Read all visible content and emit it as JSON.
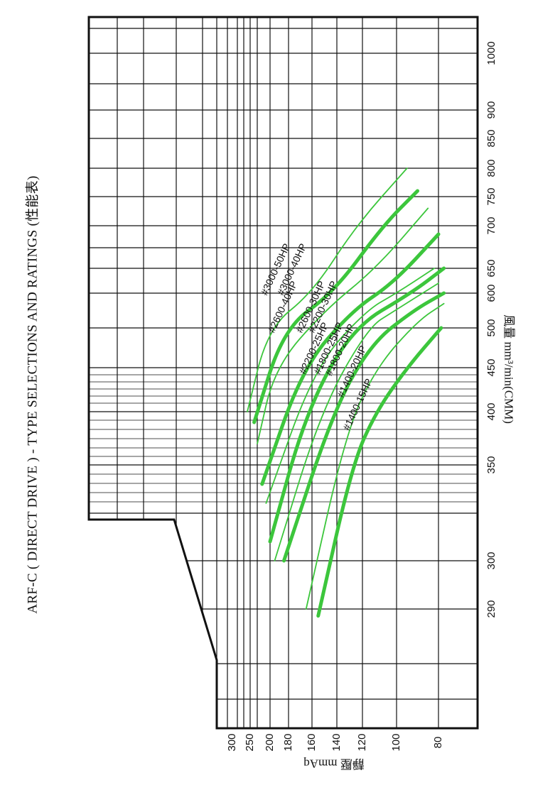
{
  "chart_data": {
    "type": "line",
    "title": "ARF-C ( DIRECT DRIVE ) - TYPE SELECTIONS AND RATINGS (性能表)",
    "xlabel": "風量 mm³/min(CMM)",
    "ylabel": "靜壓 mmAq",
    "x_ticks": [
      290,
      300,
      350,
      400,
      450,
      500,
      600,
      650,
      700,
      750,
      800,
      850,
      900,
      1000
    ],
    "y_ticks": [
      80,
      100,
      120,
      140,
      160,
      180,
      200,
      250,
      300
    ],
    "xlim": [
      250,
      1040
    ],
    "ylim": [
      60,
      320
    ],
    "grid": true,
    "colors": {
      "curve": "#3cc63c",
      "grid": "#111111",
      "text": "#111111"
    },
    "series": [
      {
        "name": "#3000-50HP",
        "weight": "thin",
        "points": [
          [
            400,
            258
          ],
          [
            500,
            205
          ],
          [
            600,
            160
          ],
          [
            700,
            125
          ],
          [
            800,
            95
          ]
        ]
      },
      {
        "name": "#3000-40HP",
        "weight": "bold",
        "points": [
          [
            390,
            240
          ],
          [
            500,
            185
          ],
          [
            600,
            143
          ],
          [
            700,
            108
          ],
          [
            760,
            90
          ]
        ]
      },
      {
        "name": "#2600-40HP",
        "weight": "thin",
        "points": [
          [
            370,
            232
          ],
          [
            450,
            195
          ],
          [
            550,
            150
          ],
          [
            650,
            112
          ],
          [
            730,
            85
          ]
        ]
      },
      {
        "name": "#2600-30HP",
        "weight": "bold",
        "points": [
          [
            340,
            220
          ],
          [
            450,
            168
          ],
          [
            550,
            128
          ],
          [
            620,
            102
          ],
          [
            690,
            80
          ]
        ]
      },
      {
        "name": "#2200-30HP",
        "weight": "thin",
        "points": [
          [
            330,
            210
          ],
          [
            450,
            158
          ],
          [
            550,
            118
          ],
          [
            600,
            100
          ],
          [
            650,
            82
          ]
        ]
      },
      {
        "name": "#2200-25HP",
        "weight": "bold",
        "points": [
          [
            310,
            200
          ],
          [
            400,
            165
          ],
          [
            500,
            128
          ],
          [
            600,
            93
          ],
          [
            650,
            76
          ]
        ]
      },
      {
        "name": "#1800-25HP",
        "weight": "thin",
        "points": [
          [
            300,
            195
          ],
          [
            400,
            153
          ],
          [
            500,
            117
          ],
          [
            550,
            101
          ],
          [
            620,
            80
          ]
        ]
      },
      {
        "name": "#1800-20HP",
        "weight": "bold",
        "points": [
          [
            300,
            185
          ],
          [
            400,
            143
          ],
          [
            480,
            115
          ],
          [
            550,
            92
          ],
          [
            600,
            76
          ]
        ]
      },
      {
        "name": "#1400-20HP",
        "weight": "thin",
        "points": [
          [
            290,
            165
          ],
          [
            380,
            133
          ],
          [
            450,
            112
          ],
          [
            520,
            90
          ],
          [
            570,
            76
          ]
        ]
      },
      {
        "name": "#1400-15HP",
        "weight": "bold",
        "points": [
          [
            285,
            155
          ],
          [
            350,
            128
          ],
          [
            400,
            112
          ],
          [
            450,
            95
          ],
          [
            500,
            78
          ]
        ]
      }
    ]
  }
}
